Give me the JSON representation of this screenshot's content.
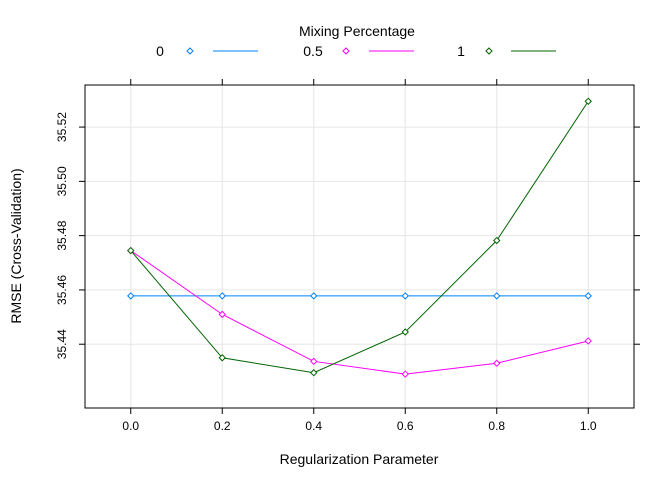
{
  "chart_data": {
    "type": "line",
    "title": "",
    "xlabel": "Regularization Parameter",
    "ylabel": "RMSE (Cross-Validation)",
    "x": [
      0.0,
      0.2,
      0.4,
      0.6,
      0.8,
      1.0
    ],
    "x_tick_labels": [
      "0.0",
      "0.2",
      "0.4",
      "0.6",
      "0.8",
      "1.0"
    ],
    "y_ticks": [
      35.44,
      35.46,
      35.48,
      35.5,
      35.52
    ],
    "y_tick_labels": [
      "35.44",
      "35.46",
      "35.48",
      "35.50",
      "35.52"
    ],
    "xlim": [
      -0.1,
      1.1
    ],
    "ylim": [
      35.4165,
      35.5355
    ],
    "grid": true,
    "legend": {
      "title": "Mixing Percentage",
      "placement": "top",
      "entries": [
        {
          "label": "0",
          "color": "#0080FF"
        },
        {
          "label": "0.5",
          "color": "#FF00FF"
        },
        {
          "label": "1",
          "color": "#006400"
        }
      ]
    },
    "series": [
      {
        "name": "0",
        "color": "#0080FF",
        "values": [
          35.4578,
          35.4578,
          35.4578,
          35.4578,
          35.4578,
          35.4578
        ]
      },
      {
        "name": "0.5",
        "color": "#FF00FF",
        "values": [
          35.4745,
          35.451,
          35.4337,
          35.429,
          35.433,
          35.4412
        ]
      },
      {
        "name": "1",
        "color": "#006400",
        "values": [
          35.4745,
          35.435,
          35.4295,
          35.4445,
          35.4782,
          35.5295
        ]
      }
    ]
  }
}
